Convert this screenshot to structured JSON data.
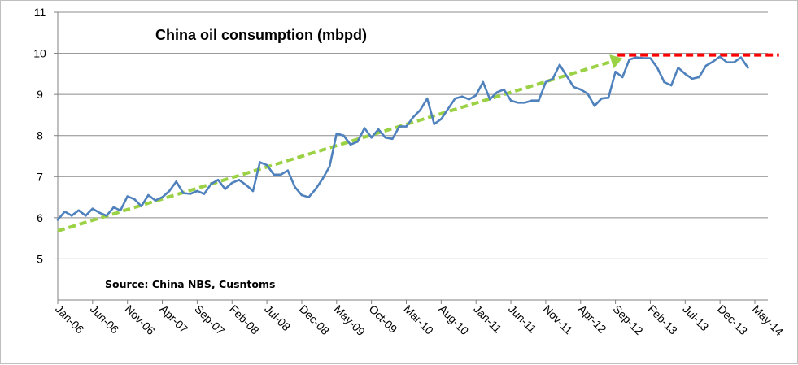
{
  "chart_data": {
    "type": "line",
    "title": "China oil consumption (mbpd)",
    "source_note": "Source: China NBS, Cusntoms",
    "xlabel": "",
    "ylabel": "",
    "ylim": [
      4,
      11
    ],
    "yticks": [
      5,
      6,
      7,
      8,
      9,
      10,
      11
    ],
    "grid": true,
    "x_tick_labels": [
      "Jan-06",
      "Jun-06",
      "Nov-06",
      "Apr-07",
      "Sep-07",
      "Feb-08",
      "Jul-08",
      "Dec-08",
      "May-09",
      "Oct-09",
      "Mar-10",
      "Aug-10",
      "Jan-11",
      "Jun-11",
      "Nov-11",
      "Apr-12",
      "Sep-12",
      "Feb-13",
      "Jul-13",
      "Dec-13",
      "May-14"
    ],
    "start_month": "Jan-06",
    "series": [
      {
        "name": "China oil consumption",
        "color": "#4f81bd",
        "values": [
          5.95,
          6.15,
          6.05,
          6.18,
          6.05,
          6.22,
          6.12,
          6.05,
          6.25,
          6.18,
          6.52,
          6.45,
          6.28,
          6.55,
          6.42,
          6.5,
          6.65,
          6.88,
          6.6,
          6.58,
          6.65,
          6.58,
          6.82,
          6.92,
          6.7,
          6.85,
          6.92,
          6.8,
          6.65,
          7.35,
          7.28,
          7.05,
          7.05,
          7.15,
          6.75,
          6.55,
          6.5,
          6.7,
          6.95,
          7.25,
          8.05,
          8.0,
          7.78,
          7.85,
          8.18,
          7.95,
          8.15,
          7.95,
          7.92,
          8.22,
          8.22,
          8.45,
          8.62,
          8.9,
          8.28,
          8.4,
          8.65,
          8.9,
          8.95,
          8.88,
          8.98,
          9.3,
          8.88,
          9.05,
          9.12,
          8.85,
          8.8,
          8.8,
          8.85,
          8.85,
          9.3,
          9.38,
          9.72,
          9.45,
          9.18,
          9.12,
          9.02,
          8.72,
          8.9,
          8.92,
          9.55,
          9.42,
          9.85,
          9.9,
          9.88,
          9.88,
          9.65,
          9.3,
          9.22,
          9.65,
          9.5,
          9.38,
          9.42,
          9.7,
          9.8,
          9.92,
          9.78,
          9.78,
          9.9,
          9.65
        ]
      }
    ],
    "annotations": [
      {
        "type": "trend-arrow",
        "color": "#9bd245",
        "from": {
          "month_index": 0,
          "value": 5.68
        },
        "to": {
          "month_index": 81,
          "value": 9.88
        }
      },
      {
        "type": "dashed-level",
        "color": "#ff0000",
        "value": 9.96,
        "from_month_index": 81,
        "to_month_index": 103
      }
    ]
  }
}
